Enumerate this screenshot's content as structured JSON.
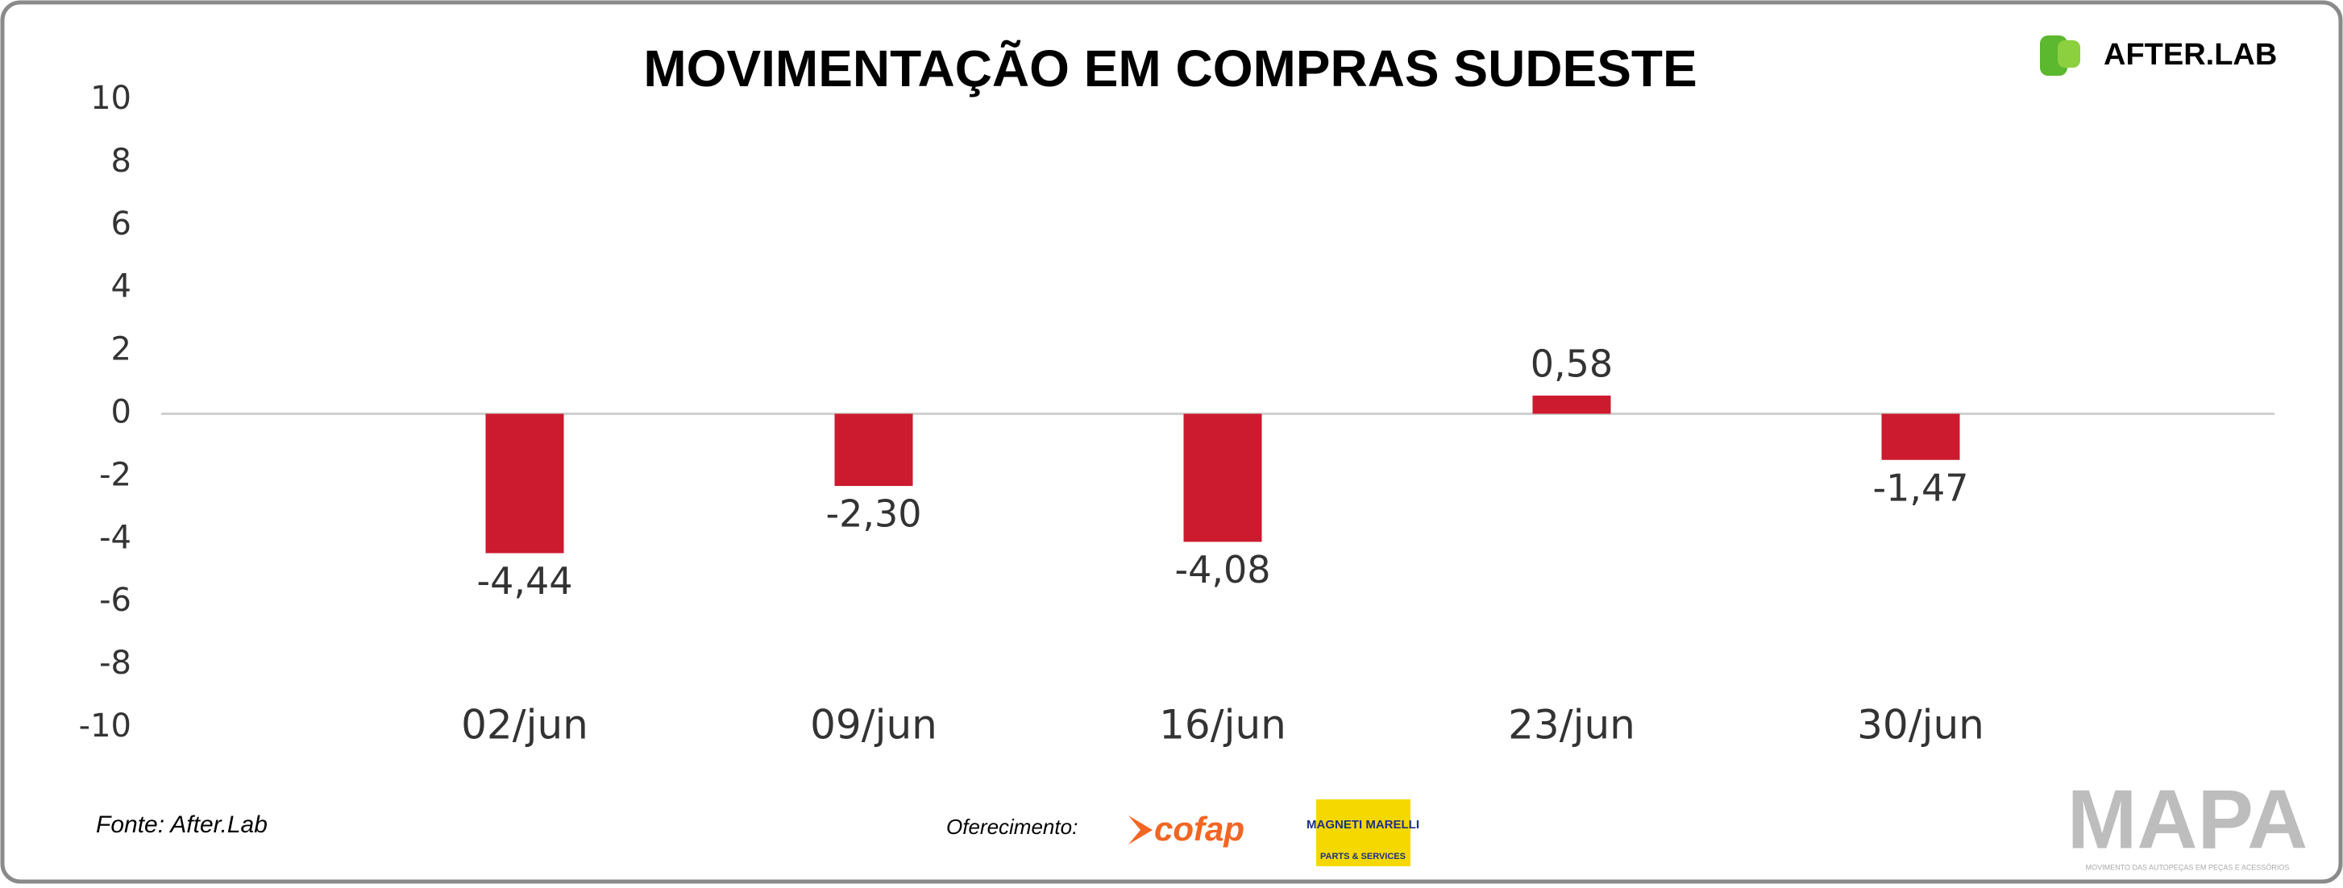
{
  "chart_data": {
    "type": "bar",
    "title": "MOVIMENTAÇÃO EM COMPRAS SUDESTE",
    "categories": [
      "02/jun",
      "09/jun",
      "16/jun",
      "23/jun",
      "30/jun"
    ],
    "values": [
      -4.44,
      -2.3,
      -4.08,
      0.58,
      -1.47
    ],
    "value_labels": [
      "-4,44",
      "-2,30",
      "-4,08",
      "0,58",
      "-1,47"
    ],
    "color": "#cc1a2e",
    "ylim": [
      -10,
      10
    ],
    "yticks": [
      -10,
      -8,
      -6,
      -4,
      -2,
      0,
      2,
      4,
      6,
      8,
      10
    ]
  },
  "source": "Fonte: After.Lab",
  "sponsor_label": "Oferecimento:",
  "logos": {
    "afterlab": "AFTER.LAB",
    "cofap": "cofap",
    "magneti": "MAGNETI MARELLI",
    "magneti_sub": "PARTS & SERVICES",
    "mapa": "MAPA",
    "mapa_sub": "MOVIMENTO DAS AUTOPEÇAS EM PEÇAS E ACESSÓRIOS"
  }
}
